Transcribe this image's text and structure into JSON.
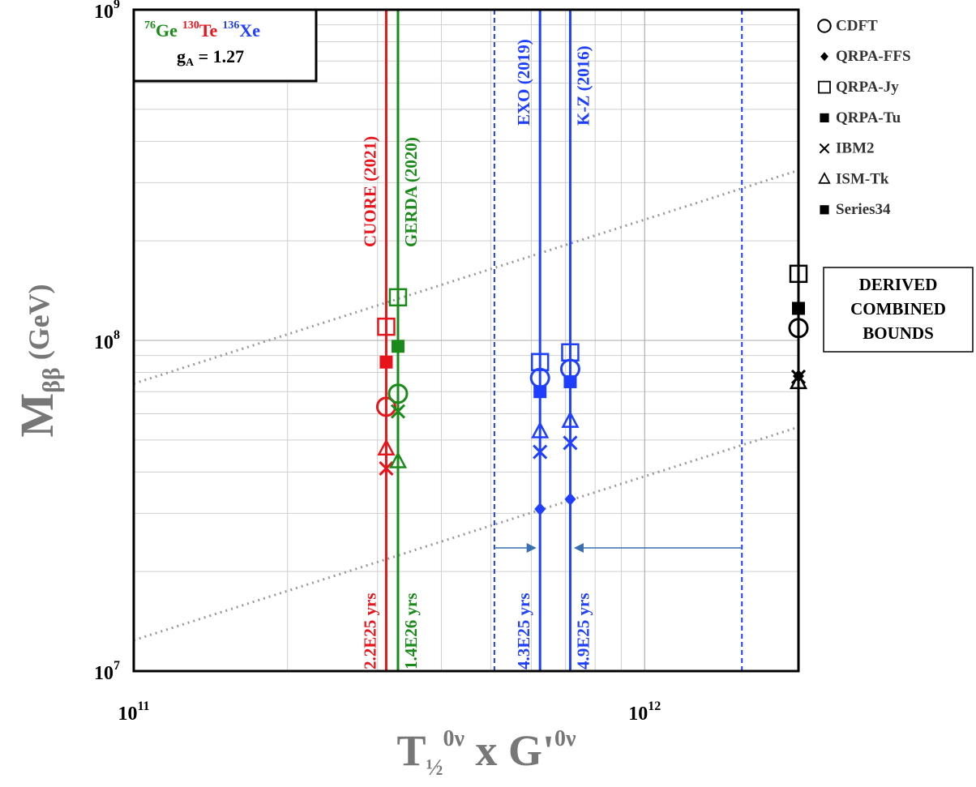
{
  "chart_data": {
    "type": "scatter",
    "log_x": true,
    "log_y": true,
    "grid": true,
    "x": [
      312000000000.0,
      329000000000.0,
      624000000000.0,
      715000000000.0,
      2000000000000.0
    ],
    "point_colors": [
      "#e8141c",
      "#1a8a1a",
      "#1f3fff",
      "#1f3fff",
      "#000000"
    ],
    "series": [
      {
        "name": "CDFT",
        "marker": "circle-open",
        "color": "#000000",
        "values": [
          63000000.0,
          69000000.0,
          77000000.0,
          82000000.0,
          109000000.0
        ]
      },
      {
        "name": "QRPA-FFS",
        "marker": "diamond",
        "color": "#000000",
        "values": [
          null,
          null,
          30900000.0,
          33100000.0,
          78000000.0
        ]
      },
      {
        "name": "QRPA-Jy",
        "marker": "square-open",
        "color": "#000000",
        "values": [
          110000000.0,
          135000000.0,
          86000000.0,
          92000000.0,
          159000000.0
        ]
      },
      {
        "name": "QRPA-Tu",
        "marker": "square",
        "color": "#000000",
        "values": [
          86000000.0,
          96000000.0,
          70000000.0,
          75000000.0,
          125000000.0
        ]
      },
      {
        "name": "IBM2",
        "marker": "cross",
        "color": "#000000",
        "values": [
          41000000.0,
          61000000.0,
          46000000.0,
          49000000.0,
          77600000.0
        ]
      },
      {
        "name": "ISM-Tk",
        "marker": "triangle-open",
        "color": "#000000",
        "values": [
          47000000.0,
          43000000.0,
          53000000.0,
          57000000.0,
          74600000.0
        ]
      },
      {
        "name": "Series34",
        "marker": "square",
        "color": "#000000",
        "values": [
          null,
          null,
          null,
          null,
          null
        ]
      }
    ],
    "limit_labels": [
      "CUORE (2021)",
      "GERDA (2020)",
      "EXO (2019)",
      "K-Z (2016)"
    ],
    "half_life_labels": [
      "2.2E25 yrs",
      "1.4E26 yrs",
      "4.3E25 yrs",
      "4.9E25 yrs"
    ],
    "dashed_x": [
      508000000000.0,
      1550000000000.0
    ],
    "guide_lines": [
      {
        "x": [
          100000000000.0,
          2000000000000.0
        ],
        "values": [
          74000000.0,
          327000000.0
        ]
      },
      {
        "x": [
          100000000000.0,
          2000000000000.0
        ],
        "values": [
          12400000.0,
          54700000.0
        ]
      }
    ],
    "xlim": [
      100000000000.0,
      2000000000000.0
    ],
    "ylim": [
      10000000.0,
      1000000000.0
    ],
    "xticks": [
      {
        "value": 100000000000.0,
        "label": "10",
        "exponent": "11"
      },
      {
        "value": 1000000000000.0,
        "label": "10",
        "exponent": "12"
      }
    ],
    "yticks": [
      {
        "value": 10000000.0,
        "label": "10",
        "exponent": "7"
      },
      {
        "value": 100000000.0,
        "label": "10",
        "exponent": "8"
      },
      {
        "value": 1000000000.0,
        "label": "10",
        "exponent": "9"
      }
    ],
    "y_label": {
      "main": "M",
      "sub": "ββ",
      "unit": " (GeV)"
    },
    "x_label": {
      "main": "T",
      "sub": "½",
      "sup": "0ν",
      "mid": " x G'",
      "sup2": "0ν"
    },
    "isotopes": [
      {
        "mass": "76",
        "symbol": "Ge",
        "color": "#1a8a1a"
      },
      {
        "mass": "130",
        "symbol": "Te",
        "color": "#e8141c"
      },
      {
        "mass": "136",
        "symbol": "Xe",
        "color": "#1f3fff"
      }
    ],
    "coupling": {
      "symbol": "g",
      "sub": "A",
      "value": " = 1.27"
    },
    "box_label": [
      "DERIVED",
      "COMBINED",
      "BOUNDS"
    ]
  }
}
